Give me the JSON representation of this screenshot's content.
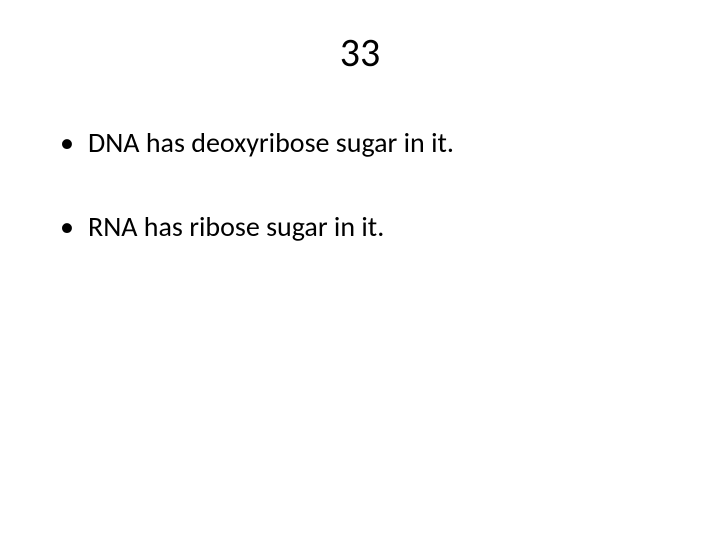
{
  "slide": {
    "title": "33",
    "title_fontsize": 40,
    "title_color": "#000000",
    "background_color": "#ffffff",
    "bullets": [
      {
        "text": "DNA  has deoxyribose sugar in it."
      },
      {
        "text": "RNA has ribose sugar in it."
      }
    ],
    "bullet_fontsize": 28,
    "bullet_color": "#000000",
    "font_family": "Calibri"
  }
}
